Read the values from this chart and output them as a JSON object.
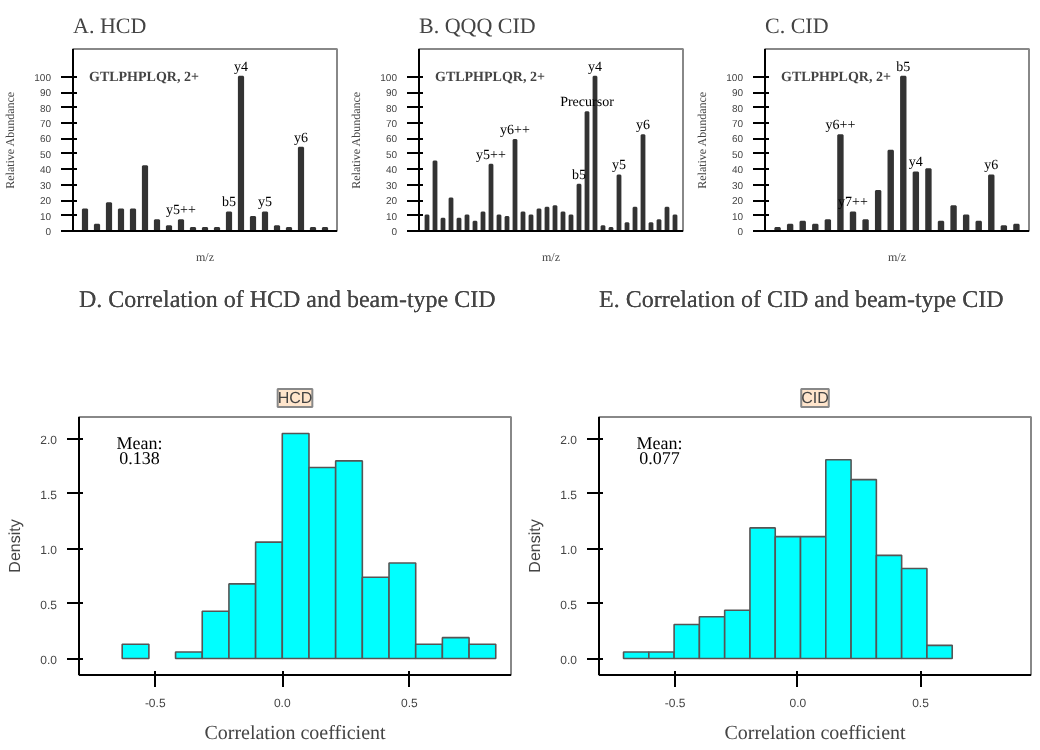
{
  "chart_data": [
    {
      "type": "bar",
      "title": "A. HCD",
      "xlabel": "m/z",
      "ylabel": "Relative Abundance",
      "color": "#333333",
      "grid": false,
      "annotations": [
        "GTLPHPLQR, 2+"
      ],
      "categories": [
        null,
        null,
        null,
        null,
        null,
        null,
        null,
        null,
        null,
        null,
        null,
        null,
        null,
        null,
        null,
        null,
        null,
        null,
        null,
        null,
        null
      ],
      "values": [
        14,
        4,
        18,
        14,
        14,
        42,
        7,
        3,
        7,
        2,
        2,
        2,
        12,
        100,
        9,
        12,
        3,
        2,
        54,
        2,
        2
      ],
      "value_labels": [
        null,
        null,
        null,
        null,
        null,
        null,
        null,
        null,
        "y5++",
        null,
        null,
        null,
        "b5",
        "y4",
        null,
        "y5",
        null,
        null,
        "y6",
        null,
        null
      ],
      "ylim": [
        0,
        118
      ],
      "yticks": [
        0,
        10,
        20,
        30,
        40,
        50,
        60,
        70,
        80,
        90,
        100
      ]
    },
    {
      "type": "bar",
      "title": "B. QQQ CID",
      "xlabel": "m/z",
      "ylabel": "Relative Abundance",
      "color": "#333333",
      "grid": false,
      "annotations": [
        "GTLPHPLQR, 2+"
      ],
      "categories": [
        null,
        null,
        null,
        null,
        null,
        null,
        null,
        null,
        null,
        null,
        null,
        null,
        null,
        null,
        null,
        null,
        null,
        null,
        null,
        null,
        null,
        null,
        null,
        null,
        null,
        null,
        null,
        null,
        null,
        null,
        null,
        null
      ],
      "values": [
        10,
        45,
        8,
        21,
        8,
        10,
        6,
        12,
        43,
        10,
        9,
        59,
        12,
        10,
        14,
        15,
        16,
        12,
        10,
        30,
        77,
        100,
        3,
        2,
        36,
        5,
        15,
        62,
        5,
        7,
        15,
        10
      ],
      "value_labels": [
        null,
        null,
        null,
        null,
        null,
        null,
        null,
        null,
        "y5++",
        null,
        null,
        "y6++",
        null,
        null,
        null,
        null,
        null,
        null,
        null,
        "b5",
        "Precursor",
        "y4",
        null,
        null,
        "y5",
        null,
        null,
        "y6",
        null,
        null,
        null,
        null
      ],
      "ylim": [
        0,
        118
      ],
      "yticks": [
        0,
        10,
        20,
        30,
        40,
        50,
        60,
        70,
        80,
        90,
        100
      ]
    },
    {
      "type": "bar",
      "title": "C. CID",
      "xlabel": "m/z",
      "ylabel": "Relative Abundance",
      "color": "#333333",
      "grid": false,
      "annotations": [
        "GTLPHPLQR, 2+"
      ],
      "categories": [
        null,
        null,
        null,
        null,
        null,
        null,
        null,
        null,
        null,
        null,
        null,
        null,
        null,
        null,
        null,
        null,
        null,
        null,
        null,
        null
      ],
      "values": [
        2,
        4,
        6,
        4,
        7,
        62,
        12,
        7,
        26,
        52,
        100,
        38,
        40,
        6,
        16,
        10,
        6,
        36,
        3,
        4
      ],
      "value_labels": [
        null,
        null,
        null,
        null,
        null,
        "y6++",
        "y7++",
        null,
        null,
        null,
        "b5",
        "y4",
        null,
        null,
        null,
        null,
        null,
        "y6",
        null,
        null
      ],
      "ylim": [
        0,
        118
      ],
      "yticks": [
        0,
        10,
        20,
        30,
        40,
        50,
        60,
        70,
        80,
        90,
        100
      ]
    },
    {
      "type": "histogram",
      "title": "D. Correlation of HCD and beam-type CID",
      "subtitle": "HCD",
      "xlabel": "Correlation coefficient",
      "ylabel": "Density",
      "color": "#00ffff",
      "grid": false,
      "annotations": [
        "Mean:\n0.138"
      ],
      "bins": [
        -0.63,
        -0.525,
        -0.42,
        -0.315,
        -0.21,
        -0.105,
        0,
        0.105,
        0.21,
        0.315,
        0.42,
        0.525,
        0.63,
        0.735,
        0.84
      ],
      "values": [
        0.13,
        0,
        0.06,
        0.43,
        0.68,
        1.06,
        2.05,
        1.74,
        1.8,
        0.74,
        0.87,
        0.13,
        0.19,
        0.13
      ],
      "xlim": [
        -0.8,
        0.9
      ],
      "ylim": [
        -0.15,
        2.2
      ],
      "xticks": [
        {
          "value": -0.5,
          "label": "-0.5"
        },
        {
          "value": 0,
          "label": "0.0"
        },
        {
          "value": 0.5,
          "label": "0.5"
        }
      ],
      "yticks": [
        {
          "value": 0,
          "label": "0.0"
        },
        {
          "value": 0.5,
          "label": "0.5"
        },
        {
          "value": 1,
          "label": "1.0"
        },
        {
          "value": 1.5,
          "label": "1.5"
        },
        {
          "value": 2,
          "label": "2.0"
        }
      ]
    },
    {
      "type": "histogram",
      "title": "E. Correlation of CID and beam-type CID",
      "subtitle": "CID",
      "xlabel": "Correlation coefficient",
      "ylabel": "Density",
      "color": "#00ffff",
      "grid": false,
      "annotations": [
        "Mean:\n0.077"
      ],
      "bins": [
        -0.71,
        -0.607,
        -0.504,
        -0.401,
        -0.298,
        -0.195,
        -0.092,
        0.011,
        0.114,
        0.217,
        0.32,
        0.423,
        0.526,
        0.629
      ],
      "values": [
        0.06,
        0.06,
        0.31,
        0.38,
        0.44,
        1.19,
        1.11,
        1.11,
        1.81,
        1.63,
        0.94,
        0.82,
        0.12
      ],
      "xlim": [
        -0.81,
        0.95
      ],
      "ylim": [
        -0.15,
        2.2
      ],
      "xticks": [
        {
          "value": -0.5,
          "label": "-0.5"
        },
        {
          "value": 0,
          "label": "0.0"
        },
        {
          "value": 0.5,
          "label": "0.5"
        }
      ],
      "yticks": [
        {
          "value": 0,
          "label": "0.0"
        },
        {
          "value": 0.5,
          "label": "0.5"
        },
        {
          "value": 1,
          "label": "1.0"
        },
        {
          "value": 1.5,
          "label": "1.5"
        },
        {
          "value": 2,
          "label": "2.0"
        }
      ]
    }
  ]
}
